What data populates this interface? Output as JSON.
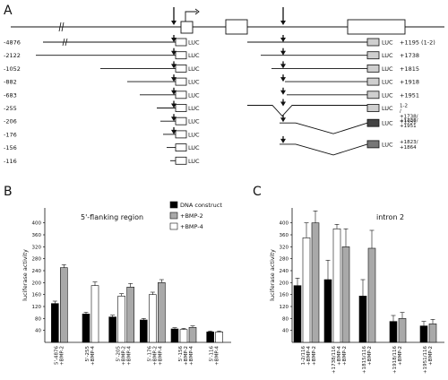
{
  "panels": {
    "a": "A",
    "b": "B",
    "c": "C"
  },
  "panel_a": {
    "luc_label": "LUC",
    "left_constructs": [
      "-4876",
      "-2122",
      "-1052",
      "-882",
      "-683",
      "-255",
      "-206",
      "-176",
      "-156",
      "-116"
    ],
    "right_constructs": [
      "+1195 (1-2)",
      "+1738",
      "+1815",
      "+1918",
      "+1951",
      "1-2 / +1738/ +1951",
      "+1738/ +1951",
      "+1823/ +1864"
    ]
  },
  "chart_data": [
    {
      "type": "bar",
      "panel": "B",
      "annotation": "5'-flanking region",
      "ylabel": "luciferase activity",
      "ylim": [
        0,
        450
      ],
      "yticks": [
        40,
        80,
        120,
        160,
        200,
        240,
        280,
        320,
        360,
        400
      ],
      "tick_labels": [
        "40",
        "80",
        "120",
        "160",
        "200",
        "240",
        "280",
        "320",
        "360",
        "400"
      ],
      "legend": [
        "DNA construct",
        "+BMP-2",
        "+BMP-4"
      ],
      "series_colors": [
        "#000000",
        "#a9a9a9",
        "#ffffff"
      ],
      "groups": [
        {
          "label": [
            "5'-4876",
            "+BMP-2"
          ],
          "bars": [
            {
              "s": 0,
              "v": 130,
              "e": 8
            },
            {
              "s": 1,
              "v": 250,
              "e": 10
            }
          ]
        },
        {
          "label": [
            "5'-255",
            "+BMP-4"
          ],
          "bars": [
            {
              "s": 0,
              "v": 95,
              "e": 6
            },
            {
              "s": 2,
              "v": 190,
              "e": 12
            }
          ]
        },
        {
          "label": [
            "5'-205",
            "+BMP-2",
            "+BMP-4"
          ],
          "bars": [
            {
              "s": 0,
              "v": 85,
              "e": 6
            },
            {
              "s": 2,
              "v": 155,
              "e": 8
            },
            {
              "s": 1,
              "v": 185,
              "e": 12
            }
          ]
        },
        {
          "label": [
            "5'-176",
            "+BMP-2",
            "+BMP-4"
          ],
          "bars": [
            {
              "s": 0,
              "v": 75,
              "e": 5
            },
            {
              "s": 2,
              "v": 160,
              "e": 8
            },
            {
              "s": 1,
              "v": 200,
              "e": 10
            }
          ]
        },
        {
          "label": [
            "5'-156",
            "+BMP-2",
            "+BMP-4"
          ],
          "bars": [
            {
              "s": 0,
              "v": 45,
              "e": 4
            },
            {
              "s": 2,
              "v": 43,
              "e": 4
            },
            {
              "s": 1,
              "v": 50,
              "e": 5
            }
          ]
        },
        {
          "label": [
            "5'-116",
            "+BMP-4"
          ],
          "bars": [
            {
              "s": 0,
              "v": 35,
              "e": 3
            },
            {
              "s": 2,
              "v": 35,
              "e": 3
            }
          ]
        }
      ]
    },
    {
      "type": "bar",
      "panel": "C",
      "annotation": "intron 2",
      "ylabel": "luciferase activity",
      "ylim": [
        0,
        450
      ],
      "yticks": [
        40,
        80,
        120,
        160,
        200,
        240,
        280,
        320,
        360,
        400
      ],
      "tick_labels": [
        "40",
        "80",
        "120",
        "160",
        "200",
        "240",
        "280",
        "320",
        "360",
        "400"
      ],
      "groups": [
        {
          "label": [
            "1-2/116",
            "+BMP-4",
            "+BMP-2"
          ],
          "bars": [
            {
              "s": 0,
              "v": 190,
              "e": 25
            },
            {
              "s": 2,
              "v": 350,
              "e": 50
            },
            {
              "s": 1,
              "v": 400,
              "e": 40
            }
          ]
        },
        {
          "label": [
            "+1738/116",
            "+BMP-4",
            "+BMP-2"
          ],
          "bars": [
            {
              "s": 0,
              "v": 210,
              "e": 65
            },
            {
              "s": 2,
              "v": 380,
              "e": 15
            },
            {
              "s": 1,
              "v": 320,
              "e": 60
            }
          ]
        },
        {
          "label": [
            "+1815/116",
            "+BMP-2"
          ],
          "bars": [
            {
              "s": 0,
              "v": 155,
              "e": 55
            },
            {
              "s": 1,
              "v": 315,
              "e": 60
            }
          ]
        },
        {
          "label": [
            "+1918/116",
            "+BMP-2"
          ],
          "bars": [
            {
              "s": 0,
              "v": 70,
              "e": 20
            },
            {
              "s": 1,
              "v": 80,
              "e": 20
            }
          ]
        },
        {
          "label": [
            "+1951/116",
            "+BMP-2"
          ],
          "bars": [
            {
              "s": 0,
              "v": 55,
              "e": 15
            },
            {
              "s": 1,
              "v": 62,
              "e": 15
            }
          ]
        }
      ]
    }
  ]
}
